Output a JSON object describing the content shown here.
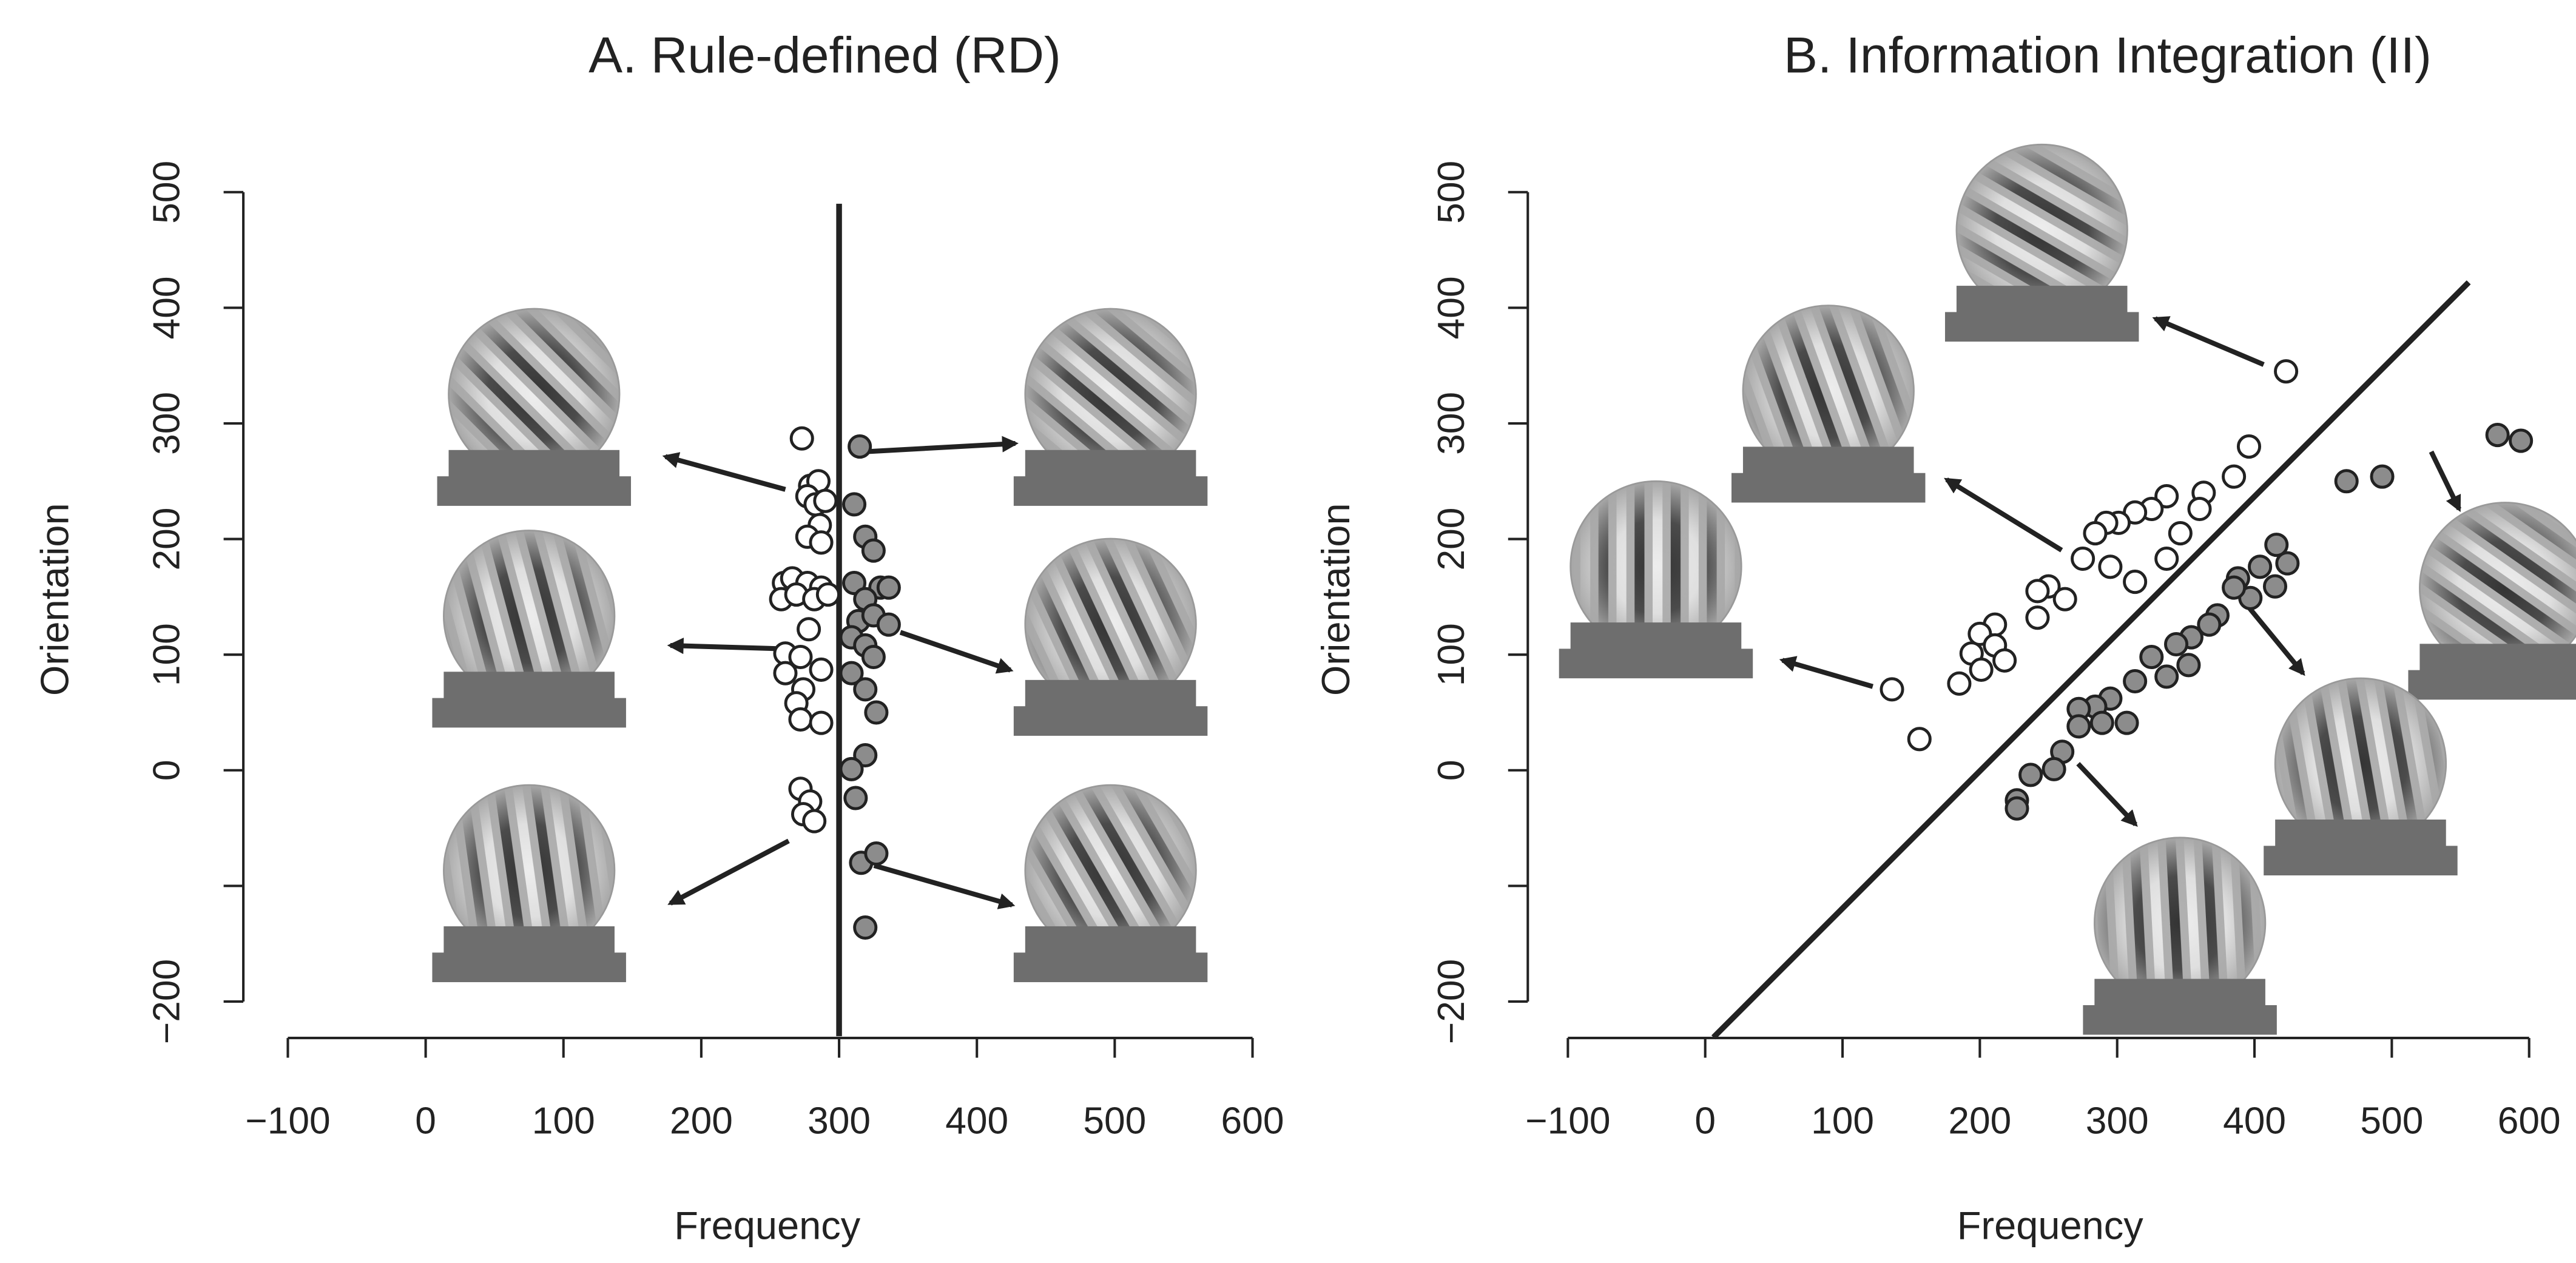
{
  "chart_data": [
    {
      "type": "scatter",
      "title": "A. Rule-defined (RD)",
      "xlabel": "Frequency",
      "ylabel": "Orientation",
      "xlim": [
        -100,
        600
      ],
      "ylim": [
        -200,
        500
      ],
      "xticks": [
        {
          "value": -100,
          "label": "−100"
        },
        0,
        100,
        200,
        300,
        400,
        500,
        600
      ],
      "yticks": [
        {
          "value": -200,
          "label": "−200"
        },
        {
          "value": -100,
          "label": null
        },
        0,
        100,
        200,
        300,
        400,
        500
      ],
      "boundary": {
        "x": [
          300,
          300
        ],
        "y": [
          -230,
          490
        ]
      },
      "series": [
        {
          "color": "#ffffff",
          "x": [
            273,
            279,
            285,
            277,
            283,
            290,
            286,
            277,
            287,
            260,
            266,
            277,
            287,
            258,
            269,
            282,
            292,
            278,
            261,
            272,
            261,
            287,
            274,
            269,
            272,
            287,
            272,
            279,
            274,
            282
          ],
          "values": [
            287,
            246,
            250,
            237,
            230,
            233,
            212,
            202,
            197,
            162,
            166,
            162,
            158,
            148,
            152,
            148,
            152,
            122,
            101,
            98,
            84,
            87,
            70,
            58,
            44,
            41,
            -16,
            -27,
            -38,
            -44
          ]
        },
        {
          "color": "#8c8c8c",
          "x": [
            315,
            311,
            319,
            325,
            311,
            330,
            319,
            336,
            314,
            325,
            336,
            309,
            319,
            325,
            309,
            319,
            327,
            319,
            309,
            312,
            316,
            327,
            319
          ],
          "values": [
            280,
            230,
            202,
            190,
            162,
            158,
            148,
            158,
            129,
            134,
            126,
            115,
            108,
            98,
            84,
            70,
            50,
            13,
            1,
            -24,
            -80,
            -72,
            -136
          ]
        }
      ]
    },
    {
      "type": "scatter",
      "title": "B. Information Integration (II)",
      "xlabel": "Frequency",
      "ylabel": "Orientation",
      "xlim": [
        -100,
        600
      ],
      "ylim": [
        -200,
        500
      ],
      "xticks": [
        {
          "value": -100,
          "label": "−100"
        },
        0,
        100,
        200,
        300,
        400,
        500,
        600
      ],
      "yticks": [
        {
          "value": -200,
          "label": "−200"
        },
        {
          "value": -100,
          "label": null
        },
        0,
        100,
        200,
        300,
        400,
        500
      ],
      "boundary": {
        "x": [
          6,
          556
        ],
        "y": [
          -231,
          422
        ]
      },
      "series": [
        {
          "color": "#ffffff",
          "x": [
            423,
            396,
            385,
            363,
            336,
            325,
            313,
            301,
            292,
            284,
            275,
            295,
            313,
            336,
            346,
            360,
            250,
            242,
            262,
            242,
            211,
            200,
            211,
            194,
            218,
            201,
            185,
            136,
            156
          ],
          "values": [
            345,
            280,
            254,
            240,
            237,
            226,
            223,
            214,
            214,
            205,
            183,
            176,
            163,
            183,
            205,
            226,
            159,
            155,
            148,
            132,
            126,
            118,
            108,
            101,
            95,
            87,
            75,
            70,
            27
          ]
        },
        {
          "color": "#8c8c8c",
          "x": [
            577,
            594,
            493,
            467,
            416,
            424,
            404,
            415,
            388,
            397,
            385,
            373,
            367,
            354,
            343,
            352,
            325,
            336,
            313,
            295,
            284,
            272,
            272,
            289,
            307,
            260,
            254,
            237,
            227,
            227
          ],
          "values": [
            290,
            285,
            254,
            250,
            195,
            179,
            176,
            159,
            166,
            149,
            158,
            134,
            126,
            115,
            109,
            91,
            98,
            81,
            77,
            62,
            55,
            53,
            38,
            41,
            41,
            16,
            1,
            -4,
            -26,
            -33
          ]
        }
      ]
    }
  ]
}
